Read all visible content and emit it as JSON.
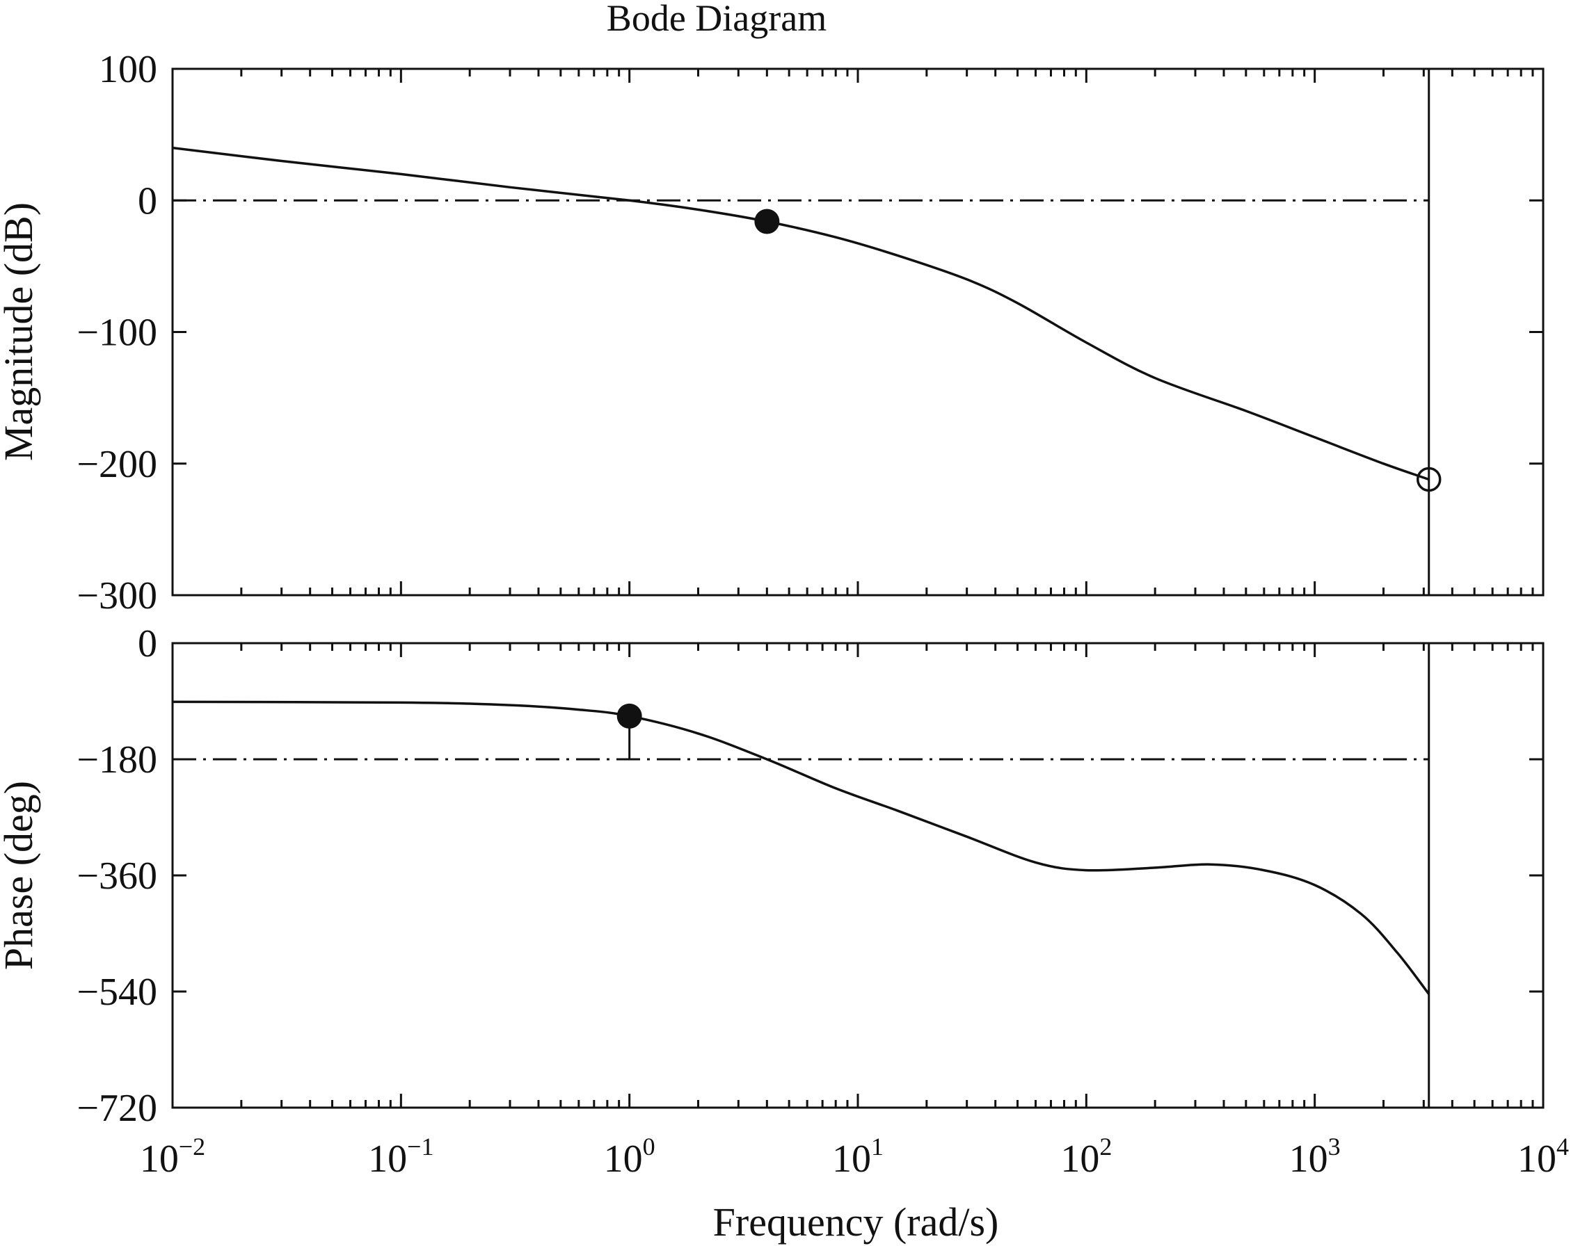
{
  "chart_data": [
    {
      "type": "line",
      "title": "Bode Diagram",
      "ylabel": "Magnitude (dB)",
      "xlabel": "Frequency (rad/s)",
      "xscale": "log",
      "xlim": [
        0.01,
        10000
      ],
      "ylim": [
        -300,
        100
      ],
      "yticks": [
        "100",
        "0",
        "−100",
        "−200",
        "−300"
      ],
      "grid": false,
      "series": [
        {
          "points": [
            {
              "x": 0.01,
              "y": 40
            },
            {
              "x": 0.03,
              "y": 30
            },
            {
              "x": 0.1,
              "y": 20
            },
            {
              "x": 0.3,
              "y": 10
            },
            {
              "x": 1.0,
              "y": 0
            },
            {
              "x": 2.0,
              "y": -7
            },
            {
              "x": 4.0,
              "y": -16
            },
            {
              "x": 8.0,
              "y": -28
            },
            {
              "x": 15,
              "y": -42
            },
            {
              "x": 30,
              "y": -60
            },
            {
              "x": 50,
              "y": -78
            },
            {
              "x": 100,
              "y": -108
            },
            {
              "x": 200,
              "y": -135
            },
            {
              "x": 500,
              "y": -160
            },
            {
              "x": 1000,
              "y": -180
            },
            {
              "x": 2000,
              "y": -200
            },
            {
              "x": 3160,
              "y": -212
            }
          ]
        }
      ],
      "reference_line": {
        "y": 0,
        "style": "dash-dot"
      },
      "vertical_line": {
        "x": 3160
      },
      "markers": [
        {
          "x": 4.0,
          "y": -16,
          "style": "filled"
        },
        {
          "x": 3160,
          "y": -212,
          "style": "open"
        }
      ]
    },
    {
      "type": "line",
      "ylabel": "Phase (deg)",
      "xlabel": "Frequency (rad/s)",
      "xscale": "log",
      "xlim": [
        0.01,
        10000
      ],
      "ylim": [
        -720,
        0
      ],
      "yticks": [
        "0",
        "−180",
        "−360",
        "−540",
        "−720"
      ],
      "xticks": [
        {
          "base": "10",
          "exp": "−2"
        },
        {
          "base": "10",
          "exp": "−1"
        },
        {
          "base": "10",
          "exp": "0"
        },
        {
          "base": "10",
          "exp": "1"
        },
        {
          "base": "10",
          "exp": "2"
        },
        {
          "base": "10",
          "exp": "3"
        },
        {
          "base": "10",
          "exp": "4"
        }
      ],
      "grid": false,
      "series": [
        {
          "points": [
            {
              "x": 0.01,
              "y": -91
            },
            {
              "x": 0.1,
              "y": -92
            },
            {
              "x": 0.3,
              "y": -96
            },
            {
              "x": 0.6,
              "y": -103
            },
            {
              "x": 1.0,
              "y": -113
            },
            {
              "x": 2.0,
              "y": -140
            },
            {
              "x": 4.0,
              "y": -180
            },
            {
              "x": 8.0,
              "y": -225
            },
            {
              "x": 15,
              "y": -260
            },
            {
              "x": 30,
              "y": -300
            },
            {
              "x": 60,
              "y": -340
            },
            {
              "x": 100,
              "y": -352
            },
            {
              "x": 200,
              "y": -348
            },
            {
              "x": 350,
              "y": -343
            },
            {
              "x": 600,
              "y": -352
            },
            {
              "x": 1000,
              "y": -375
            },
            {
              "x": 1600,
              "y": -420
            },
            {
              "x": 2300,
              "y": -480
            },
            {
              "x": 3160,
              "y": -544
            }
          ]
        }
      ],
      "reference_line": {
        "y": -180,
        "style": "dash-dot"
      },
      "vertical_line": {
        "x": 3160
      },
      "markers": [
        {
          "x": 1.0,
          "y": -113,
          "style": "filled",
          "drop_to": -180
        }
      ]
    }
  ]
}
